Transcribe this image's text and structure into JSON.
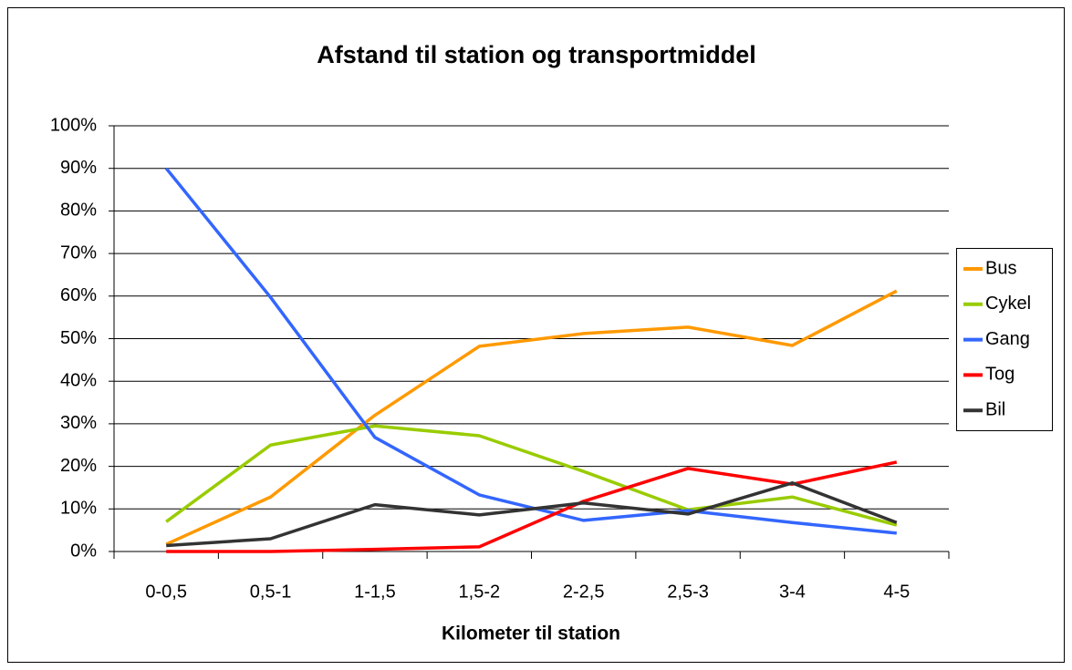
{
  "chart_data": {
    "type": "line",
    "title": "Afstand til station og transportmiddel",
    "x_label": "Kilometer til station",
    "categories": [
      "0-0,5",
      "0,5-1",
      "1-1,5",
      "1,5-2",
      "2-2,5",
      "2,5-3",
      "3-4",
      "4-5"
    ],
    "series": [
      {
        "name": "Bus",
        "color": "#ff9900",
        "values": [
          1.7,
          12.8,
          32,
          48.2,
          51.2,
          52.7,
          48.4,
          61.2
        ]
      },
      {
        "name": "Cykel",
        "color": "#99cc00",
        "values": [
          7,
          25,
          29.5,
          27.2,
          18.8,
          9.8,
          12.8,
          6.2
        ]
      },
      {
        "name": "Gang",
        "color": "#3366ff",
        "values": [
          90,
          59.7,
          26.8,
          13.3,
          7.3,
          9.6,
          6.8,
          4.3
        ]
      },
      {
        "name": "Tog",
        "color": "#ff0000",
        "values": [
          0,
          0,
          0.5,
          1.1,
          11.8,
          19.5,
          15.8,
          21
        ]
      },
      {
        "name": "Bil",
        "color": "#333333",
        "values": [
          1.4,
          3,
          11,
          8.6,
          11.4,
          8.8,
          16.1,
          6.8
        ]
      }
    ],
    "ylim": [
      0,
      100
    ],
    "yticks": [
      {
        "value": 0,
        "label": "0%"
      },
      {
        "value": 10,
        "label": "10%"
      },
      {
        "value": 20,
        "label": "20%"
      },
      {
        "value": 30,
        "label": "30%"
      },
      {
        "value": 40,
        "label": "40%"
      },
      {
        "value": 50,
        "label": "50%"
      },
      {
        "value": 60,
        "label": "60%"
      },
      {
        "value": 70,
        "label": "70%"
      },
      {
        "value": 80,
        "label": "80%"
      },
      {
        "value": 90,
        "label": "90%"
      },
      {
        "value": 100,
        "label": "100%"
      }
    ],
    "grid": true,
    "legend": "right"
  }
}
